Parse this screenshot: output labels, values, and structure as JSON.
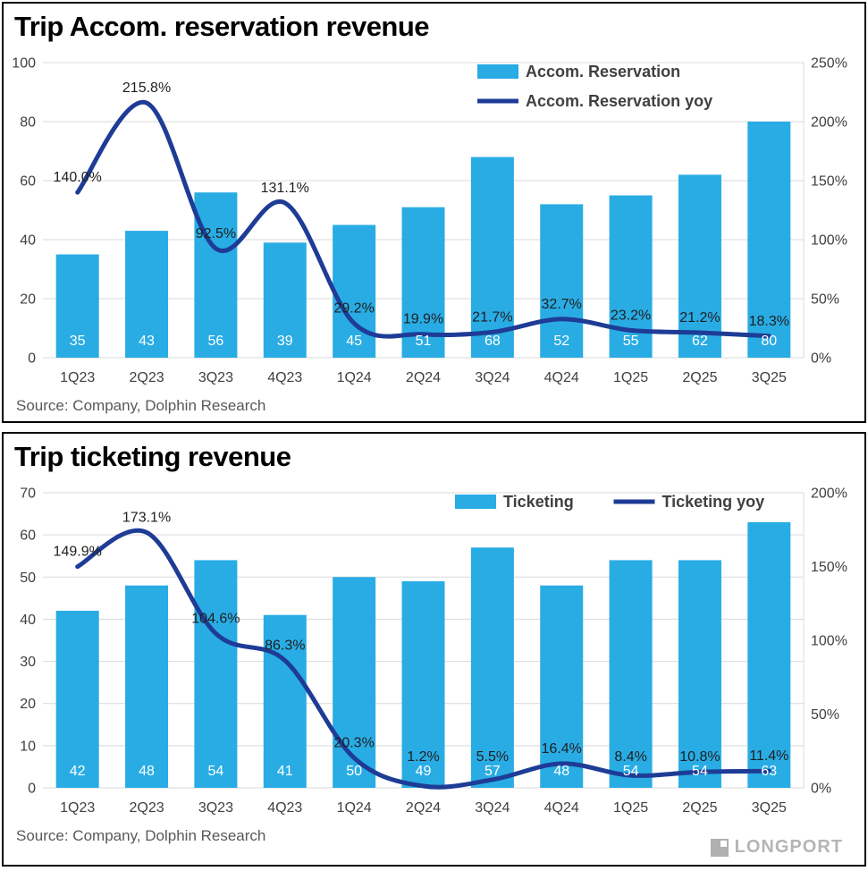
{
  "style": {
    "bar_color": "#29ace4",
    "line_color": "#1e3c96",
    "grid_color": "#d9d9d9",
    "axis_color": "#404040",
    "legend_color": "#404040",
    "bar_label_color": "#ffffff",
    "yoy_label_color": "#1f1f1f",
    "source_color": "#595959",
    "border_color": "#000000"
  },
  "watermark": {
    "text": "DolphinResearch",
    "logo": "LONGPORT"
  },
  "chart_data": [
    {
      "type": "bar",
      "title": "Trip Accom. reservation revenue",
      "categories": [
        "1Q23",
        "2Q23",
        "3Q23",
        "4Q23",
        "1Q24",
        "2Q24",
        "3Q24",
        "4Q24",
        "1Q25",
        "2Q25",
        "3Q25"
      ],
      "series": [
        {
          "name": "Accom. Reservation",
          "type": "bar",
          "axis": "left",
          "values": [
            35,
            43,
            56,
            39,
            45,
            51,
            68,
            52,
            55,
            62,
            80
          ]
        },
        {
          "name": "Accom. Reservation yoy",
          "type": "line",
          "axis": "right",
          "values": [
            140.0,
            215.8,
            92.5,
            131.1,
            29.2,
            19.9,
            21.7,
            32.7,
            23.2,
            21.2,
            18.3
          ],
          "labels": [
            "140.0%",
            "215.8%",
            "92.5%",
            "131.1%",
            "29.2%",
            "19.9%",
            "21.7%",
            "32.7%",
            "23.2%",
            "21.2%",
            "18.3%"
          ]
        }
      ],
      "left_axis": {
        "min": 0,
        "max": 100,
        "ticks": [
          0,
          20,
          40,
          60,
          80,
          100
        ]
      },
      "right_axis": {
        "min": 0,
        "max": 250,
        "ticks": [
          "0%",
          "50%",
          "100%",
          "150%",
          "200%",
          "250%"
        ]
      },
      "grid": true,
      "legend_position": "top-right",
      "legend_layout": "stacked",
      "source": "Source: Company, Dolphin Research"
    },
    {
      "type": "bar",
      "title": "Trip ticketing revenue",
      "categories": [
        "1Q23",
        "2Q23",
        "3Q23",
        "4Q23",
        "1Q24",
        "2Q24",
        "3Q24",
        "4Q24",
        "1Q25",
        "2Q25",
        "3Q25"
      ],
      "series": [
        {
          "name": "Ticketing",
          "type": "bar",
          "axis": "left",
          "values": [
            42,
            48,
            54,
            41,
            50,
            49,
            57,
            48,
            54,
            54,
            63
          ]
        },
        {
          "name": "Ticketing yoy",
          "type": "line",
          "axis": "right",
          "values": [
            149.9,
            173.1,
            104.6,
            86.3,
            20.3,
            1.2,
            5.5,
            16.4,
            8.4,
            10.8,
            11.4
          ],
          "labels": [
            "149.9%",
            "173.1%",
            "104.6%",
            "86.3%",
            "20.3%",
            "1.2%",
            "5.5%",
            "16.4%",
            "8.4%",
            "10.8%",
            "11.4%"
          ]
        }
      ],
      "left_axis": {
        "min": 0,
        "max": 70,
        "ticks": [
          0,
          10,
          20,
          30,
          40,
          50,
          60,
          70
        ]
      },
      "right_axis": {
        "min": 0,
        "max": 200,
        "ticks": [
          "0%",
          "50%",
          "100%",
          "150%",
          "200%"
        ]
      },
      "grid": true,
      "legend_position": "top-right",
      "legend_layout": "inline",
      "source": "Source: Company, Dolphin Research"
    }
  ]
}
